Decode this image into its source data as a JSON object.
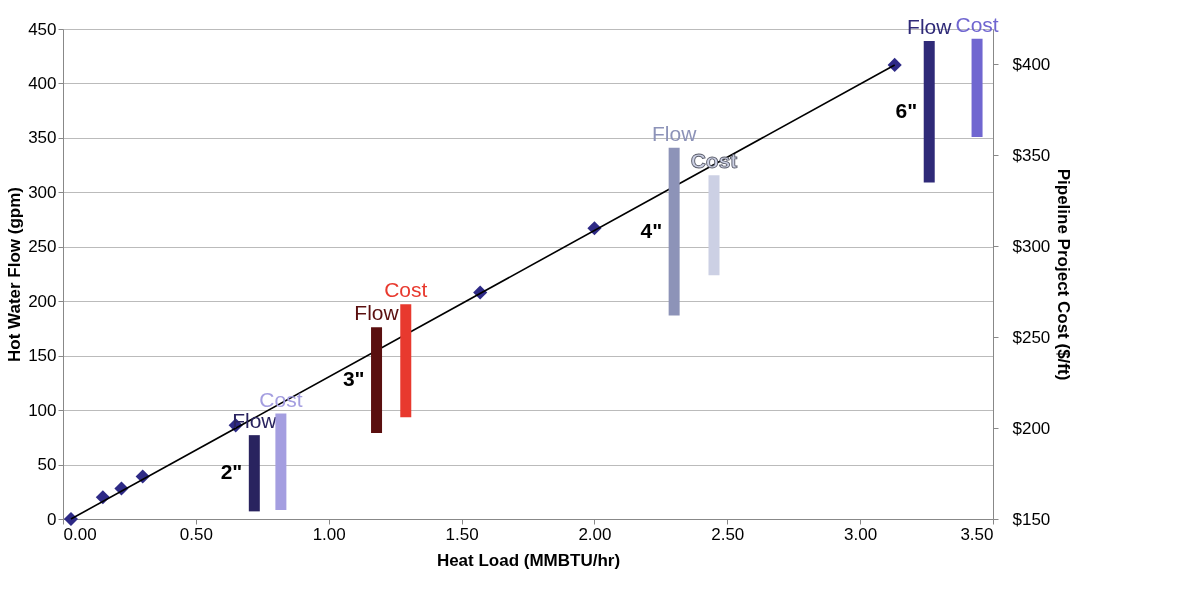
{
  "chart_data": {
    "type": "scatter",
    "xlabel": "Heat Load (MMBTU/hr)",
    "ylabel": "Hot Water Flow (gpm)",
    "y2label": "Pipeline Project Cost ($/ft)",
    "xlim": [
      0,
      3.5
    ],
    "xticks": [
      {
        "value": 0,
        "label": "0.00"
      },
      {
        "value": 0.5,
        "label": "0.50"
      },
      {
        "value": 1,
        "label": "1.00"
      },
      {
        "value": 1.5,
        "label": "1.50"
      },
      {
        "value": 2,
        "label": "2.00"
      },
      {
        "value": 2.5,
        "label": "2.50"
      },
      {
        "value": 3,
        "label": "3.00"
      },
      {
        "value": 3.5,
        "label": "3.50"
      }
    ],
    "ylim": [
      0,
      450
    ],
    "yticks": [
      0,
      50,
      100,
      150,
      200,
      250,
      300,
      350,
      400,
      450
    ],
    "y2lim": [
      150,
      419.4
    ],
    "y2ticks": [
      {
        "value": 150,
        "label": "$150"
      },
      {
        "value": 200,
        "label": "$200"
      },
      {
        "value": 250,
        "label": "$250"
      },
      {
        "value": 300,
        "label": "$300"
      },
      {
        "value": 350,
        "label": "$350"
      },
      {
        "value": 400,
        "label": "$400"
      }
    ],
    "grid": "y",
    "series": [
      {
        "color": "#2e2a86",
        "marker": "diamond",
        "x": [
          0.03,
          0.15,
          0.22,
          0.3,
          0.65,
          1.57,
          2.0,
          3.13
        ],
        "values": [
          0,
          20,
          28,
          39,
          86,
          208,
          267,
          417
        ]
      },
      {
        "type": "line",
        "color": "#000000",
        "x": [
          0.03,
          3.13
        ],
        "values": [
          0,
          417
        ],
        "marker": "none"
      },
      {
        "type": "bar",
        "name": "Flow",
        "color": "#29235f",
        "x": [
          0.72
        ],
        "base": [
          7
        ],
        "values": [
          70
        ]
      },
      {
        "type": "bar",
        "name": "Cost",
        "color": "#a49ee0",
        "axis": "y2",
        "x": [
          0.82
        ],
        "base": [
          155
        ],
        "values": [
          53
        ]
      },
      {
        "type": "bar",
        "name": "Flow",
        "color": "#5a0f0f",
        "x": [
          1.18
        ],
        "base": [
          79
        ],
        "values": [
          97
        ]
      },
      {
        "type": "bar",
        "name": "Cost",
        "color": "#e8392e",
        "axis": "y2",
        "x": [
          1.29
        ],
        "base": [
          206
        ],
        "values": [
          62
        ]
      },
      {
        "type": "bar",
        "name": "Flow",
        "color": "#8d93b8",
        "x": [
          2.3
        ],
        "base": [
          187
        ],
        "values": [
          154
        ]
      },
      {
        "type": "bar",
        "name": "Cost",
        "color": "#ccd0e4",
        "axis": "y2",
        "x": [
          2.45
        ],
        "base": [
          284
        ],
        "values": [
          55
        ]
      },
      {
        "type": "bar",
        "name": "Flow",
        "color": "#2f2a78",
        "x": [
          3.26
        ],
        "base": [
          309
        ],
        "values": [
          130
        ]
      },
      {
        "type": "bar",
        "name": "Cost",
        "color": "#7066d0",
        "axis": "y2",
        "x": [
          3.44
        ],
        "base": [
          360
        ],
        "values": [
          54
        ]
      }
    ],
    "annotations": [
      "2\"",
      "3\"",
      "4\"",
      "6\""
    ]
  }
}
